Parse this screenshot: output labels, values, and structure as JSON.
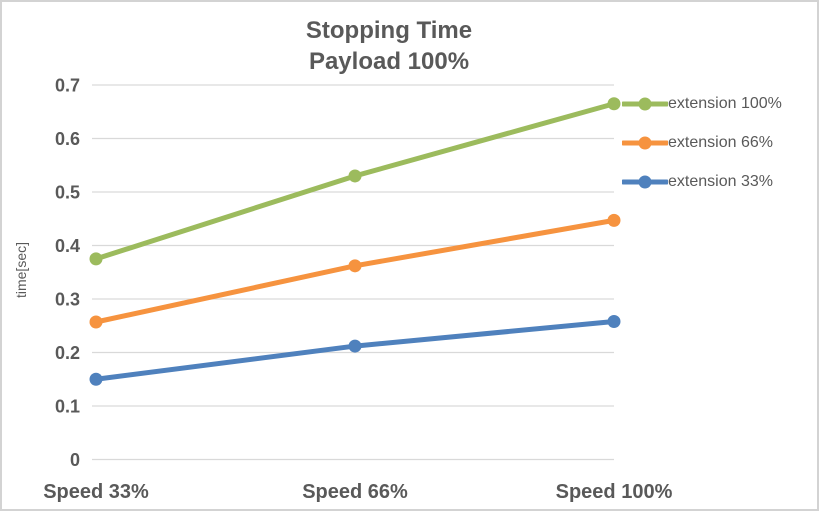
{
  "chart_data": {
    "type": "line",
    "title_lines": [
      "Stopping Time",
      "Payload 100%"
    ],
    "categories": [
      "Speed 33%",
      "Speed 66%",
      "Speed 100%"
    ],
    "series": [
      {
        "name": "extension 100%",
        "color": "#9CBB5D",
        "values": [
          0.375,
          0.53,
          0.665
        ]
      },
      {
        "name": "extension 66%",
        "color": "#F6933F",
        "values": [
          0.257,
          0.362,
          0.447
        ]
      },
      {
        "name": "extension 33%",
        "color": "#4F81BD",
        "values": [
          0.15,
          0.212,
          0.258
        ]
      }
    ],
    "xlabel": "",
    "ylabel": "time[sec]",
    "ylim": [
      0,
      0.7
    ],
    "yticks": [
      "0",
      "0.1",
      "0.2",
      "0.3",
      "0.4",
      "0.5",
      "0.6",
      "0.7"
    ],
    "grid": true,
    "legend_position": "right",
    "colors": {
      "text": "#595959",
      "gridline": "#D9D9D9",
      "border": "#D3D3D3",
      "background": "#FFFFFF"
    }
  }
}
